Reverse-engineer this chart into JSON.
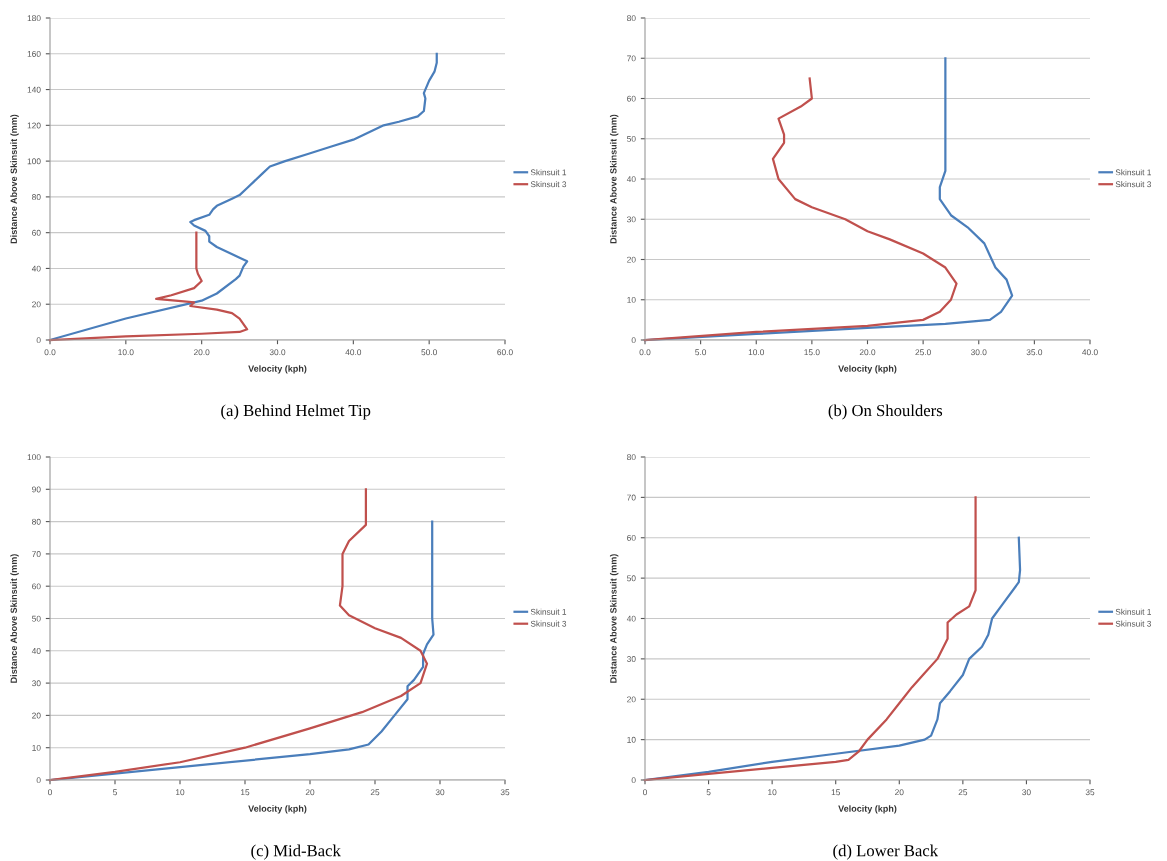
{
  "chart_data": [
    {
      "type": "line",
      "title": "(a) Behind Helmet Tip",
      "xlabel": "Velocity (kph)",
      "ylabel": "Distance Above Skinsuit (mm)",
      "xlim": [
        0,
        60
      ],
      "xticks": [
        {
          "value": 0,
          "label": "0.0"
        },
        {
          "value": 10,
          "label": "10.0"
        },
        {
          "value": 20,
          "label": "20.0"
        },
        {
          "value": 30,
          "label": "30.0"
        },
        {
          "value": 40,
          "label": "40.0"
        },
        {
          "value": 50,
          "label": "50.0"
        },
        {
          "value": 60,
          "label": "60.0"
        }
      ],
      "ylim": [
        0,
        180
      ],
      "yticks": [
        0,
        20,
        40,
        60,
        80,
        100,
        120,
        140,
        160,
        180
      ],
      "grid": "y",
      "legend": "right",
      "marker": "none",
      "line_style": "solid",
      "series": [
        {
          "name": "Skinsuit 1",
          "color": "#4a7ebb",
          "x": [
            0,
            10,
            20,
            22,
            24.5,
            25,
            25.5,
            26,
            25,
            22,
            21,
            21,
            20.5,
            19,
            18.5,
            19,
            21,
            21.5,
            22,
            24,
            25,
            26,
            28,
            29,
            31,
            34,
            37,
            40,
            42,
            44,
            46,
            48.5,
            49.3,
            49.5,
            49.3,
            50,
            50.7,
            51,
            51
          ],
          "values": [
            0,
            12,
            22,
            26,
            34,
            36,
            41,
            44,
            46,
            52,
            55,
            58,
            61,
            64,
            66,
            67,
            70,
            73,
            75,
            79,
            81,
            85,
            93,
            97,
            100,
            104,
            108,
            112,
            116,
            120,
            122,
            125,
            128,
            135,
            138,
            145,
            150,
            155,
            160
          ]
        },
        {
          "name": "Skinsuit 3",
          "color": "#c0504d",
          "x": [
            0,
            10,
            20,
            25,
            26,
            25,
            24,
            22,
            18.5,
            19,
            18,
            14,
            16,
            19,
            20,
            19.5,
            19.3,
            19.3
          ],
          "values": [
            0,
            2,
            3.5,
            4.5,
            6,
            12,
            15,
            17,
            19,
            21,
            21.5,
            23,
            25,
            29,
            33,
            37,
            40,
            60
          ]
        }
      ]
    },
    {
      "type": "line",
      "title": "(b) On Shoulders",
      "xlabel": "Velocity (kph)",
      "ylabel": "Distance Above Skinsuit (mm)",
      "xlim": [
        0,
        40
      ],
      "xticks": [
        {
          "value": 0,
          "label": "0.0"
        },
        {
          "value": 5,
          "label": "5.0"
        },
        {
          "value": 10,
          "label": "10.0"
        },
        {
          "value": 15,
          "label": "15.0"
        },
        {
          "value": 20,
          "label": "20.0"
        },
        {
          "value": 25,
          "label": "25.0"
        },
        {
          "value": 30,
          "label": "30.0"
        },
        {
          "value": 35,
          "label": "35.0"
        },
        {
          "value": 40,
          "label": "40.0"
        }
      ],
      "ylim": [
        0,
        80
      ],
      "yticks": [
        0,
        10,
        20,
        30,
        40,
        50,
        60,
        70,
        80
      ],
      "grid": "y",
      "legend": "right",
      "marker": "none",
      "line_style": "solid",
      "series": [
        {
          "name": "Skinsuit 1",
          "color": "#4a7ebb",
          "x": [
            0,
            10,
            20,
            27,
            31,
            32,
            33,
            32.5,
            31.5,
            31,
            30.5,
            29,
            27.5,
            26.5,
            26.5,
            27,
            27,
            27
          ],
          "values": [
            0,
            1.5,
            3,
            4,
            5,
            7,
            11,
            15,
            18,
            21,
            24,
            28,
            31,
            35,
            38,
            42,
            47,
            70
          ]
        },
        {
          "name": "Skinsuit 3",
          "color": "#c0504d",
          "x": [
            0,
            10,
            20,
            25,
            26.5,
            27.5,
            28,
            27,
            25,
            22,
            20,
            18,
            15,
            13.5,
            12,
            11.5,
            12.5,
            12.5,
            12,
            14,
            15,
            14.8
          ],
          "values": [
            0,
            2,
            3.5,
            5,
            7,
            10,
            14,
            18,
            21.5,
            25,
            27,
            30,
            33,
            35,
            40,
            45,
            49,
            51,
            55,
            58,
            60,
            65
          ]
        }
      ]
    },
    {
      "type": "line",
      "title": "(c) Mid-Back",
      "xlabel": "Velocity (kph)",
      "ylabel": "Distance Above Skinsuit (mm)",
      "xlim": [
        0,
        35
      ],
      "xticks": [
        0,
        5,
        10,
        15,
        20,
        25,
        30,
        35
      ],
      "ylim": [
        0,
        100
      ],
      "yticks": [
        0,
        10,
        20,
        30,
        40,
        50,
        60,
        70,
        80,
        90,
        100
      ],
      "grid": "y",
      "legend": "right",
      "marker": "none",
      "line_style": "solid",
      "series": [
        {
          "name": "Skinsuit 1",
          "color": "#4a7ebb",
          "x": [
            0,
            10,
            20,
            23,
            24.5,
            25.5,
            26.5,
            27.5,
            27.5,
            28,
            28.7,
            28.7,
            29,
            29.5,
            29.4,
            29.4
          ],
          "values": [
            0,
            4,
            8,
            9.5,
            11,
            15,
            20,
            25,
            29,
            31,
            35,
            39,
            42,
            45,
            50,
            80
          ]
        },
        {
          "name": "Skinsuit 3",
          "color": "#c0504d",
          "x": [
            0,
            5,
            10,
            15,
            20,
            24,
            27,
            28.5,
            29,
            28.5,
            27,
            25,
            23,
            22.3,
            22.5,
            22.5,
            23,
            24.3,
            24.3
          ],
          "values": [
            0,
            2.5,
            5.5,
            10,
            16,
            21,
            26,
            30,
            36,
            40,
            44,
            47,
            51,
            54,
            60,
            70,
            74,
            79,
            90
          ]
        }
      ]
    },
    {
      "type": "line",
      "title": "(d) Lower Back",
      "xlabel": "Velocity (kph)",
      "ylabel": "Distance Above Skinsuit (mm)",
      "xlim": [
        0,
        35
      ],
      "xticks": [
        0,
        5,
        10,
        15,
        20,
        25,
        30,
        35
      ],
      "ylim": [
        0,
        80
      ],
      "yticks": [
        0,
        10,
        20,
        30,
        40,
        50,
        60,
        70,
        80
      ],
      "grid": "y",
      "legend": "right",
      "marker": "none",
      "line_style": "solid",
      "series": [
        {
          "name": "Skinsuit 1",
          "color": "#4a7ebb",
          "x": [
            0,
            5,
            10,
            15,
            20,
            22,
            22.5,
            23,
            23.2,
            24,
            25,
            25.5,
            26.5,
            27,
            27.3,
            28,
            29.4,
            29.5,
            29.4
          ],
          "values": [
            0,
            2,
            4.5,
            6.5,
            8.5,
            10,
            11,
            15,
            19,
            22,
            26,
            30,
            33,
            36,
            40,
            43,
            49,
            52,
            60
          ]
        },
        {
          "name": "Skinsuit 3",
          "color": "#c0504d",
          "x": [
            0,
            5,
            10,
            15,
            16,
            16.8,
            17.5,
            19,
            20,
            21,
            22,
            23,
            23.8,
            23.8,
            24.5,
            25.5,
            26,
            26,
            26
          ],
          "values": [
            0,
            1.5,
            3,
            4.5,
            5,
            7,
            10,
            15,
            19,
            23,
            26.5,
            30,
            35,
            39,
            41,
            43,
            47,
            50,
            70
          ]
        }
      ]
    }
  ]
}
